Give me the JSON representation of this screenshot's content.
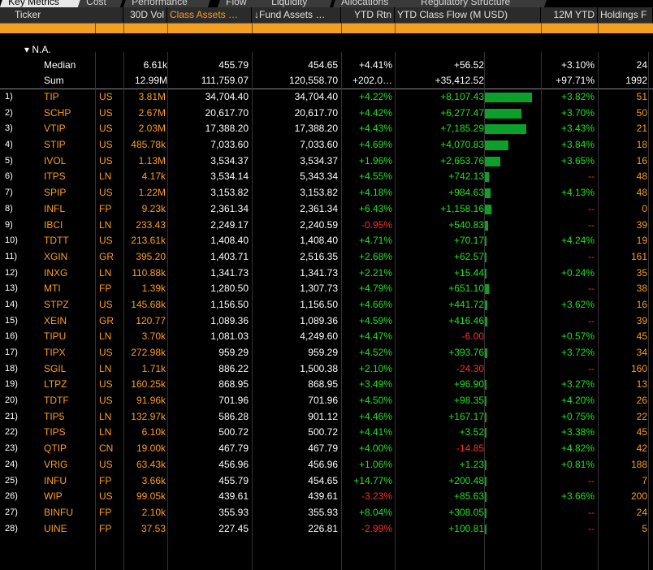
{
  "tabs": [
    "Key Metrics",
    "Cost",
    "Performance",
    "Flow",
    "Liquidity",
    "Allocations",
    "Regulatory Structure"
  ],
  "columns": {
    "ticker": "Ticker",
    "vol": "30D Vol",
    "class_assets": "Class Assets …",
    "fund_assets": "↓Fund Assets …",
    "ytd_rtn": "YTD Rtn",
    "ytd_flow": "YTD Class Flow (M USD)",
    "ytd12m": "12M YTD",
    "holdings": "Holdings F"
  },
  "group": {
    "label": "▾ N.A."
  },
  "summary": [
    {
      "label": "Median",
      "vol": "6.61k",
      "class_assets": "455.79",
      "fund_assets": "454.65",
      "ytd_rtn": "+4.41%",
      "flow": "+56.52",
      "ytd12m": "+3.10%",
      "holdings": "24"
    },
    {
      "label": "Sum",
      "vol": "12.99M",
      "class_assets": "111,759.07",
      "fund_assets": "120,558.70",
      "ytd_rtn": "+202.0…",
      "flow": "+35,412.52",
      "ytd12m": "+97.71%",
      "holdings": "1992"
    }
  ],
  "rows": [
    {
      "idx": "1)",
      "ticker": "TIP",
      "ctry": "US",
      "vol": "3.81M",
      "class_assets": "34,704.40",
      "fund_assets": "34,704.40",
      "ytd_rtn": "+4.22%",
      "flow": "+8,107.43",
      "flow_value": 8107.43,
      "ytd12m": "+3.82%",
      "holdings": "51"
    },
    {
      "idx": "2)",
      "ticker": "SCHP",
      "ctry": "US",
      "vol": "2.67M",
      "class_assets": "20,617.70",
      "fund_assets": "20,617.70",
      "ytd_rtn": "+4.42%",
      "flow": "+6,277.47",
      "flow_value": 6277.47,
      "ytd12m": "+3.70%",
      "holdings": "50"
    },
    {
      "idx": "3)",
      "ticker": "VTIP",
      "ctry": "US",
      "vol": "2.03M",
      "class_assets": "17,388.20",
      "fund_assets": "17,388.20",
      "ytd_rtn": "+4.43%",
      "flow": "+7,185.29",
      "flow_value": 7185.29,
      "ytd12m": "+3.43%",
      "holdings": "21"
    },
    {
      "idx": "4)",
      "ticker": "STIP",
      "ctry": "US",
      "vol": "485.78k",
      "class_assets": "7,033.60",
      "fund_assets": "7,033.60",
      "ytd_rtn": "+4.69%",
      "flow": "+4,070.83",
      "flow_value": 4070.83,
      "ytd12m": "+3.84%",
      "holdings": "18"
    },
    {
      "idx": "5)",
      "ticker": "IVOL",
      "ctry": "US",
      "vol": "1.13M",
      "class_assets": "3,534.37",
      "fund_assets": "3,534.37",
      "ytd_rtn": "+1.96%",
      "flow": "+2,653.76",
      "flow_value": 2653.76,
      "ytd12m": "+3.65%",
      "holdings": "16"
    },
    {
      "idx": "6)",
      "ticker": "ITPS",
      "ctry": "LN",
      "vol": "4.17k",
      "class_assets": "3,534.14",
      "fund_assets": "5,343.34",
      "ytd_rtn": "+4.55%",
      "flow": "+742.13",
      "flow_value": 742.13,
      "ytd12m": "--",
      "holdings": "48"
    },
    {
      "idx": "7)",
      "ticker": "SPIP",
      "ctry": "US",
      "vol": "1.22M",
      "class_assets": "3,153.82",
      "fund_assets": "3,153.82",
      "ytd_rtn": "+4.18%",
      "flow": "+984.63",
      "flow_value": 984.63,
      "ytd12m": "+4.13%",
      "holdings": "48"
    },
    {
      "idx": "8)",
      "ticker": "INFL",
      "ctry": "FP",
      "vol": "9.23k",
      "class_assets": "2,361.34",
      "fund_assets": "2,361.34",
      "ytd_rtn": "+6.43%",
      "flow": "+1,158.16",
      "flow_value": 1158.16,
      "ytd12m": "--",
      "holdings": "0"
    },
    {
      "idx": "9)",
      "ticker": "IBCI",
      "ctry": "LN",
      "vol": "233.43",
      "class_assets": "2,249.17",
      "fund_assets": "2,240.59",
      "ytd_rtn": "-0.95%",
      "flow": "+540.83",
      "flow_value": 540.83,
      "ytd12m": "--",
      "holdings": "39"
    },
    {
      "idx": "10)",
      "ticker": "TDTT",
      "ctry": "US",
      "vol": "213.61k",
      "class_assets": "1,408.40",
      "fund_assets": "1,408.40",
      "ytd_rtn": "+4.71%",
      "flow": "+70.17",
      "flow_value": 70.17,
      "ytd12m": "+4.24%",
      "holdings": "19"
    },
    {
      "idx": "11)",
      "ticker": "XGIN",
      "ctry": "GR",
      "vol": "395.20",
      "class_assets": "1,403.71",
      "fund_assets": "2,516.35",
      "ytd_rtn": "+2.68%",
      "flow": "+62.57",
      "flow_value": 62.57,
      "ytd12m": "--",
      "holdings": "161"
    },
    {
      "idx": "12)",
      "ticker": "INXG",
      "ctry": "LN",
      "vol": "110.88k",
      "class_assets": "1,341.73",
      "fund_assets": "1,341.73",
      "ytd_rtn": "+2.21%",
      "flow": "+15.44",
      "flow_value": 15.44,
      "ytd12m": "+0.24%",
      "holdings": "35"
    },
    {
      "idx": "13)",
      "ticker": "MTI",
      "ctry": "FP",
      "vol": "1.39k",
      "class_assets": "1,280.50",
      "fund_assets": "1,307.73",
      "ytd_rtn": "+4.79%",
      "flow": "+651.10",
      "flow_value": 651.1,
      "ytd12m": "--",
      "holdings": "38"
    },
    {
      "idx": "14)",
      "ticker": "STPZ",
      "ctry": "US",
      "vol": "145.68k",
      "class_assets": "1,156.50",
      "fund_assets": "1,156.50",
      "ytd_rtn": "+4.66%",
      "flow": "+441.72",
      "flow_value": 441.72,
      "ytd12m": "+3.62%",
      "holdings": "16"
    },
    {
      "idx": "15)",
      "ticker": "XEIN",
      "ctry": "GR",
      "vol": "120.77",
      "class_assets": "1,089.36",
      "fund_assets": "1,089.36",
      "ytd_rtn": "+4.59%",
      "flow": "+416.46",
      "flow_value": 416.46,
      "ytd12m": "--",
      "holdings": "39"
    },
    {
      "idx": "16)",
      "ticker": "TIPU",
      "ctry": "LN",
      "vol": "3.70k",
      "class_assets": "1,081.03",
      "fund_assets": "4,249.60",
      "ytd_rtn": "+4.47%",
      "flow": "-6.00",
      "flow_value": -6.0,
      "ytd12m": "+0.57%",
      "holdings": "45"
    },
    {
      "idx": "17)",
      "ticker": "TIPX",
      "ctry": "US",
      "vol": "272.98k",
      "class_assets": "959.29",
      "fund_assets": "959.29",
      "ytd_rtn": "+4.52%",
      "flow": "+393.76",
      "flow_value": 393.76,
      "ytd12m": "+3.72%",
      "holdings": "34"
    },
    {
      "idx": "18)",
      "ticker": "SGIL",
      "ctry": "LN",
      "vol": "1.71k",
      "class_assets": "886.22",
      "fund_assets": "1,500.38",
      "ytd_rtn": "+2.10%",
      "flow": "-24.30",
      "flow_value": -24.3,
      "ytd12m": "--",
      "holdings": "160"
    },
    {
      "idx": "19)",
      "ticker": "LTPZ",
      "ctry": "US",
      "vol": "160.25k",
      "class_assets": "868.95",
      "fund_assets": "868.95",
      "ytd_rtn": "+3.49%",
      "flow": "+96.90",
      "flow_value": 96.9,
      "ytd12m": "+3.27%",
      "holdings": "13"
    },
    {
      "idx": "20)",
      "ticker": "TDTF",
      "ctry": "US",
      "vol": "91.96k",
      "class_assets": "701.96",
      "fund_assets": "701.96",
      "ytd_rtn": "+4.50%",
      "flow": "+98.35",
      "flow_value": 98.35,
      "ytd12m": "+4.20%",
      "holdings": "26"
    },
    {
      "idx": "21)",
      "ticker": "TIP5",
      "ctry": "LN",
      "vol": "132.97k",
      "class_assets": "586.28",
      "fund_assets": "901.12",
      "ytd_rtn": "+4.46%",
      "flow": "+167.17",
      "flow_value": 167.17,
      "ytd12m": "+0.75%",
      "holdings": "22"
    },
    {
      "idx": "22)",
      "ticker": "TIPS",
      "ctry": "LN",
      "vol": "6.10k",
      "class_assets": "500.72",
      "fund_assets": "500.72",
      "ytd_rtn": "+4.41%",
      "flow": "+3.52",
      "flow_value": 3.52,
      "ytd12m": "+3.38%",
      "holdings": "45"
    },
    {
      "idx": "23)",
      "ticker": "QTIP",
      "ctry": "CN",
      "vol": "19.00k",
      "class_assets": "467.79",
      "fund_assets": "467.79",
      "ytd_rtn": "+4.00%",
      "flow": "-14.85",
      "flow_value": -14.85,
      "ytd12m": "+4.82%",
      "holdings": "42"
    },
    {
      "idx": "24)",
      "ticker": "VRIG",
      "ctry": "US",
      "vol": "63.43k",
      "class_assets": "456.96",
      "fund_assets": "456.96",
      "ytd_rtn": "+1.06%",
      "flow": "+1.23",
      "flow_value": 1.23,
      "ytd12m": "+0.81%",
      "holdings": "188"
    },
    {
      "idx": "25)",
      "ticker": "INFU",
      "ctry": "FP",
      "vol": "3.66k",
      "class_assets": "455.79",
      "fund_assets": "454.65",
      "ytd_rtn": "+14.77%",
      "flow": "+200.48",
      "flow_value": 200.48,
      "ytd12m": "--",
      "holdings": "7"
    },
    {
      "idx": "26)",
      "ticker": "WIP",
      "ctry": "US",
      "vol": "99.05k",
      "class_assets": "439.61",
      "fund_assets": "439.61",
      "ytd_rtn": "-3.23%",
      "flow": "+85.63",
      "flow_value": 85.63,
      "ytd12m": "+3.66%",
      "holdings": "200"
    },
    {
      "idx": "27)",
      "ticker": "BINFU",
      "ctry": "FP",
      "vol": "2.10k",
      "class_assets": "355.93",
      "fund_assets": "355.93",
      "ytd_rtn": "+8.04%",
      "flow": "+308.05",
      "flow_value": 308.05,
      "ytd12m": "--",
      "holdings": "24"
    },
    {
      "idx": "28)",
      "ticker": "UINE",
      "ctry": "FP",
      "vol": "37.53",
      "class_assets": "227.45",
      "fund_assets": "226.81",
      "ytd_rtn": "-2.99%",
      "flow": "+100.81",
      "flow_value": 100.81,
      "ytd12m": "--",
      "holdings": "5"
    }
  ],
  "colors": {
    "accent": "#ff9d1f",
    "positive": "#20e020",
    "negative": "#ff2b2b",
    "bar": "#0c9f2a",
    "filter": "#f59f1e"
  }
}
